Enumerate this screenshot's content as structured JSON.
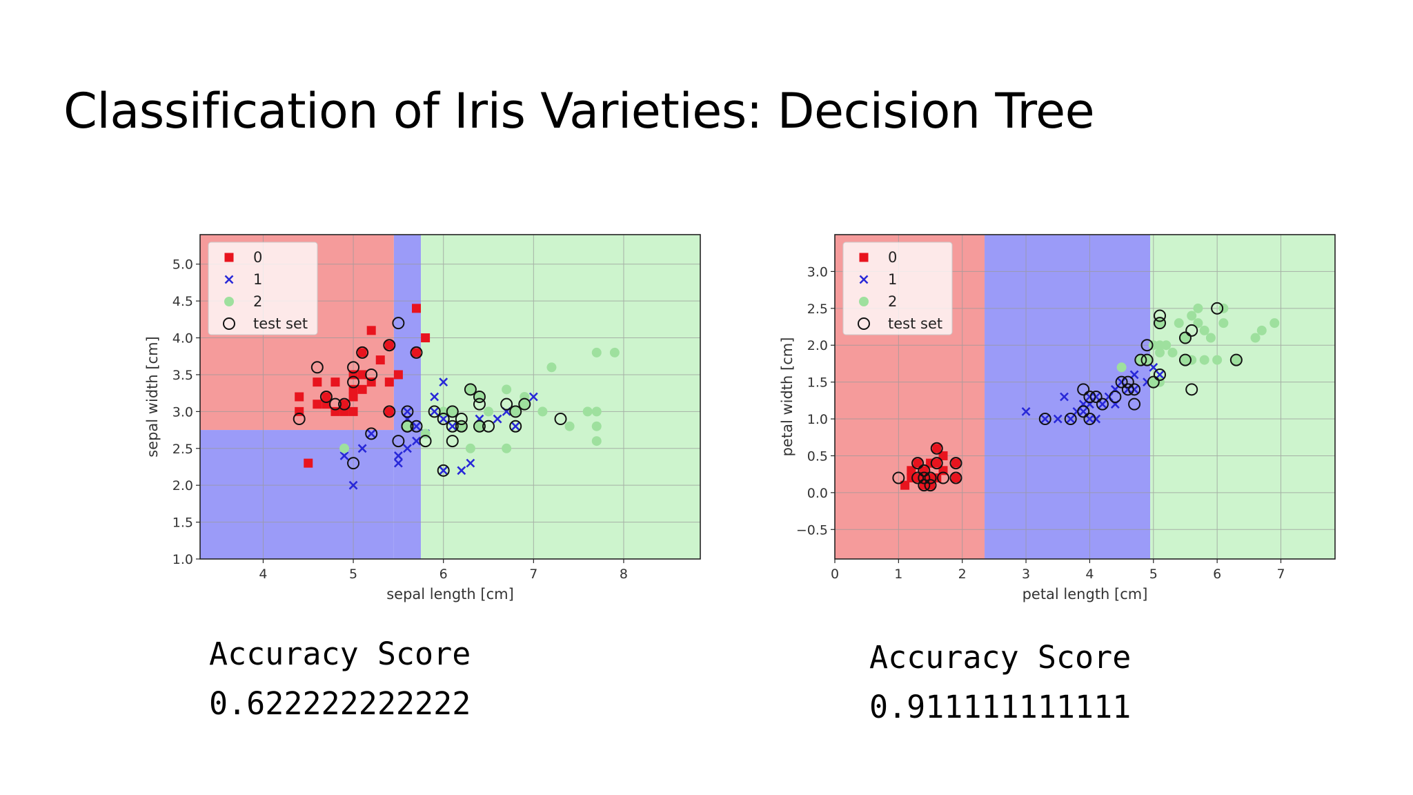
{
  "title": "Classification of Iris Varieties: Decision Tree",
  "colors": {
    "class0_region": "#f59b9b",
    "class1_region": "#9b9bf8",
    "class2_region": "#cdf4cd",
    "class0_marker": "#e8141e",
    "class1_marker": "#2828d8",
    "class2_marker": "#9ee09e",
    "test_marker_edge": "#111111"
  },
  "scores": [
    {
      "label": "Accuracy Score",
      "value": "0.622222222222"
    },
    {
      "label": "Accuracy Score",
      "value": "0.911111111111"
    }
  ],
  "chart_data": [
    {
      "type": "scatter",
      "title": "",
      "xlabel": "sepal length [cm]",
      "ylabel": "sepal width [cm]",
      "xlim": [
        3.3,
        8.85
      ],
      "ylim": [
        1.0,
        5.4
      ],
      "xticks": [
        4,
        5,
        6,
        7,
        8
      ],
      "yticks": [
        1.0,
        1.5,
        2.0,
        2.5,
        3.0,
        3.5,
        4.0,
        4.5,
        5.0
      ],
      "grid": true,
      "legend": {
        "placement": "top-left",
        "entries": [
          "0",
          "1",
          "2",
          "test set"
        ]
      },
      "regions": [
        {
          "class": 0,
          "x": [
            3.3,
            5.45
          ],
          "y": [
            2.75,
            5.4
          ]
        },
        {
          "class": 1,
          "x": [
            3.3,
            5.45
          ],
          "y": [
            1.0,
            2.75
          ]
        },
        {
          "class": 1,
          "x": [
            5.45,
            5.75
          ],
          "y": [
            1.0,
            5.4
          ]
        },
        {
          "class": 2,
          "x": [
            5.75,
            8.85
          ],
          "y": [
            1.0,
            5.4
          ]
        }
      ],
      "series": [
        {
          "name": "0",
          "marker": "square",
          "points": [
            [
              4.4,
              3.0
            ],
            [
              4.4,
              3.2
            ],
            [
              4.6,
              3.1
            ],
            [
              4.6,
              3.4
            ],
            [
              4.7,
              3.2
            ],
            [
              4.8,
              3.0
            ],
            [
              4.8,
              3.4
            ],
            [
              4.9,
              3.0
            ],
            [
              4.9,
              3.1
            ],
            [
              5.0,
              3.0
            ],
            [
              5.0,
              3.3
            ],
            [
              5.0,
              3.5
            ],
            [
              5.1,
              3.3
            ],
            [
              5.1,
              3.5
            ],
            [
              5.1,
              3.8
            ],
            [
              5.2,
              3.4
            ],
            [
              5.2,
              4.1
            ],
            [
              5.3,
              3.7
            ],
            [
              5.4,
              3.4
            ],
            [
              5.4,
              3.9
            ],
            [
              5.5,
              3.5
            ],
            [
              5.7,
              4.4
            ],
            [
              5.8,
              4.0
            ],
            [
              5.7,
              3.8
            ],
            [
              4.5,
              2.3
            ],
            [
              5.0,
              3.2
            ],
            [
              5.4,
              3.0
            ],
            [
              4.7,
              3.1
            ]
          ]
        },
        {
          "name": "1",
          "marker": "x",
          "points": [
            [
              4.9,
              2.4
            ],
            [
              5.0,
              2.0
            ],
            [
              5.1,
              2.5
            ],
            [
              5.2,
              2.7
            ],
            [
              5.5,
              2.3
            ],
            [
              5.5,
              2.4
            ],
            [
              5.6,
              2.5
            ],
            [
              5.6,
              2.9
            ],
            [
              5.7,
              2.6
            ],
            [
              5.7,
              2.8
            ],
            [
              5.8,
              2.7
            ],
            [
              5.9,
              3.0
            ],
            [
              5.9,
              3.2
            ],
            [
              6.0,
              2.2
            ],
            [
              6.0,
              2.9
            ],
            [
              6.0,
              3.4
            ],
            [
              6.1,
              2.8
            ],
            [
              6.2,
              2.2
            ],
            [
              6.3,
              2.3
            ],
            [
              6.4,
              2.9
            ],
            [
              6.6,
              2.9
            ],
            [
              6.7,
              3.0
            ],
            [
              6.8,
              2.8
            ],
            [
              7.0,
              3.2
            ],
            [
              5.6,
              3.0
            ],
            [
              6.1,
              3.0
            ]
          ]
        },
        {
          "name": "2",
          "marker": "circle",
          "points": [
            [
              4.9,
              2.5
            ],
            [
              5.6,
              2.8
            ],
            [
              5.8,
              2.7
            ],
            [
              6.0,
              3.0
            ],
            [
              6.1,
              3.0
            ],
            [
              6.2,
              2.8
            ],
            [
              6.3,
              2.5
            ],
            [
              6.3,
              3.3
            ],
            [
              6.4,
              2.8
            ],
            [
              6.5,
              3.0
            ],
            [
              6.7,
              2.5
            ],
            [
              6.7,
              3.3
            ],
            [
              6.8,
              3.0
            ],
            [
              6.9,
              3.1
            ],
            [
              7.1,
              3.0
            ],
            [
              7.2,
              3.6
            ],
            [
              7.4,
              2.8
            ],
            [
              7.6,
              3.0
            ],
            [
              7.7,
              2.6
            ],
            [
              7.7,
              2.8
            ],
            [
              7.7,
              3.0
            ],
            [
              7.7,
              3.8
            ],
            [
              7.9,
              3.8
            ],
            [
              6.9,
              3.2
            ],
            [
              6.4,
              3.2
            ]
          ]
        },
        {
          "name": "test set",
          "marker": "open-circle",
          "points": [
            [
              4.4,
              2.9
            ],
            [
              4.6,
              3.6
            ],
            [
              4.7,
              3.2
            ],
            [
              4.8,
              3.1
            ],
            [
              4.9,
              3.1
            ],
            [
              5.0,
              3.4
            ],
            [
              5.0,
              3.6
            ],
            [
              5.1,
              3.8
            ],
            [
              5.4,
              3.9
            ],
            [
              5.5,
              4.2
            ],
            [
              5.7,
              3.8
            ],
            [
              5.2,
              3.5
            ],
            [
              5.0,
              2.3
            ],
            [
              5.2,
              2.7
            ],
            [
              5.4,
              3.0
            ],
            [
              5.5,
              2.6
            ],
            [
              5.6,
              3.0
            ],
            [
              5.6,
              2.8
            ],
            [
              5.7,
              2.8
            ],
            [
              5.8,
              2.6
            ],
            [
              5.9,
              3.0
            ],
            [
              6.0,
              2.2
            ],
            [
              6.0,
              2.9
            ],
            [
              6.1,
              2.8
            ],
            [
              6.1,
              2.6
            ],
            [
              6.1,
              3.0
            ],
            [
              6.2,
              2.9
            ],
            [
              6.3,
              3.3
            ],
            [
              6.4,
              2.8
            ],
            [
              6.4,
              3.2
            ],
            [
              6.4,
              3.1
            ],
            [
              6.5,
              2.8
            ],
            [
              6.7,
              3.1
            ],
            [
              6.8,
              2.8
            ],
            [
              6.8,
              3.0
            ],
            [
              6.9,
              3.1
            ],
            [
              7.3,
              2.9
            ],
            [
              5.6,
              2.8
            ],
            [
              6.2,
              2.8
            ]
          ]
        }
      ]
    },
    {
      "type": "scatter",
      "title": "",
      "xlabel": "petal length [cm]",
      "ylabel": "petal width [cm]",
      "xlim": [
        0,
        7.85
      ],
      "ylim": [
        -0.9,
        3.5
      ],
      "xticks": [
        0,
        1,
        2,
        3,
        4,
        5,
        6,
        7
      ],
      "yticks": [
        -0.5,
        0.0,
        0.5,
        1.0,
        1.5,
        2.0,
        2.5,
        3.0
      ],
      "ytick_labels": [
        "−0.5",
        "0.0",
        "0.5",
        "1.0",
        "1.5",
        "2.0",
        "2.5",
        "3.0"
      ],
      "grid": true,
      "legend": {
        "placement": "top-left",
        "entries": [
          "0",
          "1",
          "2",
          "test set"
        ]
      },
      "regions": [
        {
          "class": 0,
          "x": [
            0,
            2.35
          ],
          "y": [
            -0.9,
            3.5
          ]
        },
        {
          "class": 1,
          "x": [
            2.35,
            4.95
          ],
          "y": [
            -0.9,
            3.5
          ]
        },
        {
          "class": 2,
          "x": [
            4.95,
            7.85
          ],
          "y": [
            -0.9,
            3.5
          ]
        }
      ],
      "series": [
        {
          "name": "0",
          "marker": "square",
          "points": [
            [
              1.1,
              0.1
            ],
            [
              1.2,
              0.2
            ],
            [
              1.3,
              0.2
            ],
            [
              1.3,
              0.4
            ],
            [
              1.4,
              0.1
            ],
            [
              1.4,
              0.2
            ],
            [
              1.4,
              0.3
            ],
            [
              1.5,
              0.1
            ],
            [
              1.5,
              0.2
            ],
            [
              1.5,
              0.4
            ],
            [
              1.6,
              0.2
            ],
            [
              1.6,
              0.4
            ],
            [
              1.7,
              0.3
            ],
            [
              1.7,
              0.5
            ],
            [
              1.9,
              0.2
            ],
            [
              1.9,
              0.4
            ],
            [
              1.6,
              0.6
            ],
            [
              1.2,
              0.3
            ]
          ]
        },
        {
          "name": "1",
          "marker": "x",
          "points": [
            [
              3.0,
              1.1
            ],
            [
              3.3,
              1.0
            ],
            [
              3.5,
              1.0
            ],
            [
              3.6,
              1.3
            ],
            [
              3.7,
              1.0
            ],
            [
              3.8,
              1.1
            ],
            [
              3.9,
              1.1
            ],
            [
              3.9,
              1.2
            ],
            [
              4.0,
              1.0
            ],
            [
              4.0,
              1.3
            ],
            [
              4.1,
              1.0
            ],
            [
              4.1,
              1.3
            ],
            [
              4.2,
              1.2
            ],
            [
              4.3,
              1.3
            ],
            [
              4.4,
              1.2
            ],
            [
              4.5,
              1.5
            ],
            [
              4.6,
              1.4
            ],
            [
              4.7,
              1.4
            ],
            [
              4.7,
              1.6
            ],
            [
              4.8,
              1.8
            ],
            [
              4.9,
              1.5
            ],
            [
              5.0,
              1.7
            ],
            [
              5.1,
              1.6
            ],
            [
              4.4,
              1.4
            ],
            [
              4.0,
              1.2
            ]
          ]
        },
        {
          "name": "2",
          "marker": "circle",
          "points": [
            [
              4.5,
              1.7
            ],
            [
              4.8,
              1.8
            ],
            [
              4.9,
              1.8
            ],
            [
              5.0,
              1.5
            ],
            [
              5.0,
              2.0
            ],
            [
              5.1,
              1.5
            ],
            [
              5.1,
              1.9
            ],
            [
              5.1,
              2.0
            ],
            [
              5.1,
              2.3
            ],
            [
              5.2,
              2.0
            ],
            [
              5.3,
              1.9
            ],
            [
              5.4,
              2.3
            ],
            [
              5.5,
              1.8
            ],
            [
              5.5,
              2.1
            ],
            [
              5.6,
              1.8
            ],
            [
              5.6,
              2.4
            ],
            [
              5.7,
              2.3
            ],
            [
              5.7,
              2.5
            ],
            [
              5.8,
              1.8
            ],
            [
              5.8,
              2.2
            ],
            [
              5.9,
              2.1
            ],
            [
              6.0,
              1.8
            ],
            [
              6.1,
              2.3
            ],
            [
              6.1,
              2.5
            ],
            [
              6.6,
              2.1
            ],
            [
              6.7,
              2.2
            ],
            [
              6.9,
              2.3
            ],
            [
              6.3,
              1.8
            ]
          ]
        },
        {
          "name": "test set",
          "marker": "open-circle",
          "points": [
            [
              1.0,
              0.2
            ],
            [
              1.3,
              0.2
            ],
            [
              1.3,
              0.4
            ],
            [
              1.4,
              0.2
            ],
            [
              1.4,
              0.3
            ],
            [
              1.5,
              0.1
            ],
            [
              1.5,
              0.2
            ],
            [
              1.6,
              0.4
            ],
            [
              1.6,
              0.6
            ],
            [
              1.7,
              0.2
            ],
            [
              1.9,
              0.4
            ],
            [
              1.9,
              0.2
            ],
            [
              1.4,
              0.1
            ],
            [
              3.3,
              1.0
            ],
            [
              3.7,
              1.0
            ],
            [
              3.9,
              1.1
            ],
            [
              3.9,
              1.4
            ],
            [
              4.0,
              1.0
            ],
            [
              4.0,
              1.3
            ],
            [
              4.1,
              1.3
            ],
            [
              4.2,
              1.2
            ],
            [
              4.4,
              1.3
            ],
            [
              4.5,
              1.5
            ],
            [
              4.6,
              1.4
            ],
            [
              4.6,
              1.5
            ],
            [
              4.7,
              1.4
            ],
            [
              4.7,
              1.2
            ],
            [
              4.8,
              1.8
            ],
            [
              4.9,
              1.8
            ],
            [
              4.9,
              2.0
            ],
            [
              5.0,
              1.5
            ],
            [
              5.1,
              1.6
            ],
            [
              5.1,
              2.3
            ],
            [
              5.1,
              2.4
            ],
            [
              5.5,
              1.8
            ],
            [
              5.5,
              2.1
            ],
            [
              5.6,
              2.2
            ],
            [
              5.6,
              1.4
            ],
            [
              6.0,
              2.5
            ],
            [
              6.3,
              1.8
            ]
          ]
        }
      ]
    }
  ]
}
